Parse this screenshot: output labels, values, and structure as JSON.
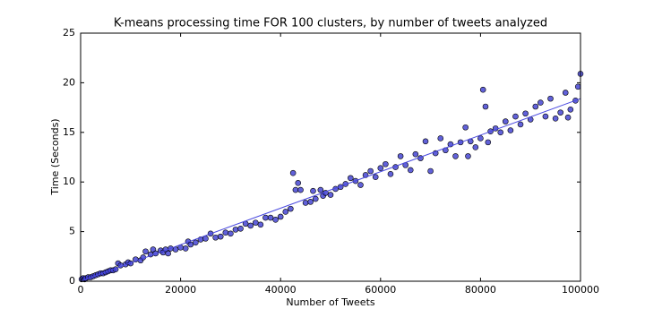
{
  "chart_data": {
    "type": "scatter",
    "title": "K-means processing time FOR 100 clusters, by number of tweets analyzed",
    "x_label": "Number of Tweets",
    "y_label": "Time (Seconds)",
    "xlim": [
      0,
      100000
    ],
    "ylim": [
      0,
      25
    ],
    "xticks": [
      0,
      20000,
      40000,
      60000,
      80000,
      100000
    ],
    "yticks": [
      0,
      5,
      10,
      15,
      20,
      25
    ],
    "color": "#3a3ad0",
    "x": [
      200,
      500,
      800,
      1000,
      1500,
      2000,
      2500,
      3000,
      3500,
      4000,
      4500,
      5000,
      5500,
      6000,
      6500,
      7000,
      7500,
      8000,
      9000,
      9500,
      10000,
      11000,
      12000,
      12500,
      13000,
      14000,
      14500,
      15000,
      16000,
      16500,
      17000,
      17500,
      18000,
      19000,
      20000,
      21000,
      21500,
      22000,
      23000,
      24000,
      25000,
      26000,
      27000,
      28000,
      29000,
      30000,
      31000,
      32000,
      33000,
      34000,
      35000,
      36000,
      37000,
      38000,
      39000,
      40000,
      41000,
      42000,
      42500,
      43000,
      43500,
      44000,
      45000,
      46000,
      46500,
      47000,
      48000,
      48500,
      49000,
      50000,
      51000,
      52000,
      53000,
      54000,
      55000,
      56000,
      57000,
      58000,
      59000,
      60000,
      61000,
      62000,
      63000,
      64000,
      65000,
      66000,
      67000,
      68000,
      69000,
      70000,
      71000,
      72000,
      73000,
      74000,
      75000,
      76000,
      77000,
      77500,
      78000,
      79000,
      80000,
      80500,
      81000,
      81500,
      82000,
      83000,
      84000,
      85000,
      86000,
      87000,
      88000,
      89000,
      90000,
      91000,
      92000,
      93000,
      94000,
      95000,
      96000,
      97000,
      97500,
      98000,
      99000,
      99500,
      100000
    ],
    "values": [
      0.2,
      0.3,
      0.2,
      0.3,
      0.4,
      0.4,
      0.5,
      0.6,
      0.7,
      0.8,
      0.8,
      0.9,
      1.0,
      1.1,
      1.1,
      1.2,
      1.8,
      1.6,
      1.7,
      1.9,
      1.8,
      2.2,
      2.1,
      2.4,
      3.0,
      2.7,
      3.2,
      2.8,
      3.1,
      2.9,
      3.2,
      2.8,
      3.3,
      3.2,
      3.4,
      3.3,
      4.0,
      3.7,
      3.9,
      4.2,
      4.3,
      4.8,
      4.4,
      4.5,
      4.9,
      4.8,
      5.2,
      5.3,
      5.8,
      5.6,
      5.9,
      5.7,
      6.4,
      6.4,
      6.2,
      6.5,
      7.0,
      7.3,
      10.9,
      9.2,
      9.9,
      9.2,
      7.9,
      8.0,
      9.1,
      8.3,
      9.2,
      8.6,
      8.9,
      8.7,
      9.3,
      9.5,
      9.8,
      10.4,
      10.1,
      9.7,
      10.7,
      11.1,
      10.5,
      11.4,
      11.8,
      10.8,
      11.5,
      12.6,
      11.7,
      11.2,
      12.8,
      12.4,
      14.1,
      11.1,
      12.9,
      14.4,
      13.2,
      13.8,
      12.6,
      14.0,
      15.5,
      12.6,
      14.1,
      13.5,
      14.4,
      19.3,
      17.6,
      14.0,
      15.1,
      15.4,
      15.0,
      16.1,
      15.2,
      16.6,
      15.8,
      16.9,
      16.3,
      17.6,
      18.0,
      16.6,
      18.4,
      16.4,
      17.0,
      19.0,
      16.5,
      17.3,
      18.2,
      19.6,
      20.9
    ],
    "trend": {
      "color": "#4a4ae0",
      "x": [
        0,
        100000
      ],
      "values": [
        0,
        18.4
      ]
    }
  }
}
